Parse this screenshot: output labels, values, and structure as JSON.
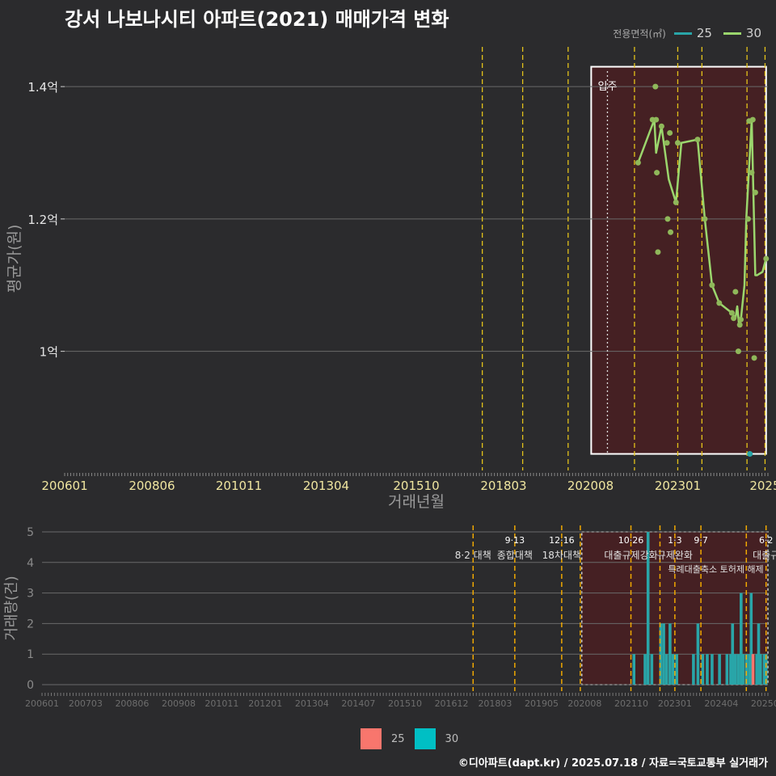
{
  "title": "강서 나보나시티 아파트(2021) 매매가격 변화",
  "footer": "©디아파트(dapt.kr) / 2025.07.18 / 자료=국토교통부 실거래가",
  "colors": {
    "background": "#2b2b2d",
    "line30": "#9bd66d",
    "point30": "#8fb85a",
    "bar30": "#29a5a8",
    "bar25": "#f8766d",
    "dashed": "#e3c21a",
    "shade": "#4a1f22",
    "grid": "#6a6a6a"
  },
  "legend_top": {
    "title": "전용면적(㎡)",
    "items": [
      "25",
      "30"
    ]
  },
  "legend_bottom": {
    "items": [
      "25",
      "30"
    ]
  },
  "chart_data": [
    {
      "type": "line",
      "title": "강서 나보나시티 아파트(2021) 매매가격 변화",
      "xlabel": "거래년월",
      "ylabel": "평균가(원)",
      "xlim": [
        2006.0,
        2025.5
      ],
      "ylim": [
        0.82,
        1.46
      ],
      "yticks": [
        {
          "v": 1.0,
          "label": "1억"
        },
        {
          "v": 1.2,
          "label": "1.2억"
        },
        {
          "v": 1.4,
          "label": "1.4억"
        }
      ],
      "xticks": [
        {
          "v": 2006.0,
          "label": "200601"
        },
        {
          "v": 2008.42,
          "label": "200806"
        },
        {
          "v": 2010.83,
          "label": "201011"
        },
        {
          "v": 2013.25,
          "label": "201304"
        },
        {
          "v": 2015.75,
          "label": "201510"
        },
        {
          "v": 2018.17,
          "label": "201803"
        },
        {
          "v": 2020.58,
          "label": "202008"
        },
        {
          "v": 2023.0,
          "label": "202301"
        },
        {
          "v": 2025.42,
          "label": "2025"
        }
      ],
      "vlines": [
        2017.58,
        2018.7,
        2019.96,
        2021.8,
        2023.0,
        2023.67,
        2024.92,
        2025.42
      ],
      "annotation": {
        "label": "입주",
        "x": 2021.05
      },
      "highlight": {
        "x0": 2020.6,
        "x1": 2025.45,
        "y0": 0.845,
        "y1": 1.43
      },
      "series": [
        {
          "name": "30",
          "x": [
            2021.9,
            2022.35,
            2022.4,
            2022.55,
            2022.75,
            2022.95,
            2023.1,
            2023.55,
            2023.75,
            2023.95,
            2024.15,
            2024.5,
            2024.6,
            2024.65,
            2024.7,
            2024.75,
            2024.85,
            2024.9,
            2024.95,
            2025.05,
            2025.15,
            2025.2,
            2025.35,
            2025.45
          ],
          "y": [
            1.285,
            1.35,
            1.3,
            1.34,
            1.26,
            1.225,
            1.315,
            1.32,
            1.2,
            1.1,
            1.073,
            1.058,
            1.05,
            1.068,
            1.04,
            1.048,
            1.1,
            1.2,
            1.25,
            1.35,
            1.115,
            1.115,
            1.12,
            1.14
          ]
        },
        {
          "name": "30-points",
          "x": [
            2021.9,
            2022.3,
            2022.38,
            2022.4,
            2022.42,
            2022.45,
            2022.55,
            2022.7,
            2022.72,
            2022.78,
            2022.8,
            2022.95,
            2023.0,
            2023.55,
            2023.75,
            2023.95,
            2024.15,
            2024.5,
            2024.55,
            2024.6,
            2024.68,
            2024.72,
            2024.75,
            2024.95,
            2024.98,
            2025.05,
            2025.08,
            2025.12,
            2025.15,
            2025.45
          ],
          "y": [
            1.285,
            1.35,
            1.4,
            1.35,
            1.27,
            1.15,
            1.34,
            1.315,
            1.2,
            1.33,
            1.18,
            1.225,
            1.315,
            1.32,
            1.2,
            1.1,
            1.073,
            1.058,
            1.05,
            1.09,
            1.0,
            1.04,
            1.048,
            1.2,
            1.348,
            1.27,
            1.35,
            0.99,
            1.24,
            1.14
          ]
        },
        {
          "name": "25",
          "x": [
            2025.0
          ],
          "y": [
            0.845
          ]
        }
      ]
    },
    {
      "type": "bar",
      "xlabel": "",
      "ylabel": "거래량(건)",
      "xlim": [
        2006.0,
        2025.5
      ],
      "ylim": [
        0,
        5
      ],
      "yticks": [
        0,
        1,
        2,
        3,
        4,
        5
      ],
      "xticks": [
        {
          "v": 2006.0,
          "label": "200601"
        },
        {
          "v": 2007.17,
          "label": "200703"
        },
        {
          "v": 2008.42,
          "label": "200806"
        },
        {
          "v": 2009.67,
          "label": "200908"
        },
        {
          "v": 2010.83,
          "label": "201011"
        },
        {
          "v": 2012.0,
          "label": "201201"
        },
        {
          "v": 2013.25,
          "label": "201304"
        },
        {
          "v": 2014.5,
          "label": "201407"
        },
        {
          "v": 2015.75,
          "label": "201510"
        },
        {
          "v": 2017.0,
          "label": "201612"
        },
        {
          "v": 2018.17,
          "label": "201803"
        },
        {
          "v": 2019.42,
          "label": "201905"
        },
        {
          "v": 2020.58,
          "label": "202008"
        },
        {
          "v": 2021.83,
          "label": "202110"
        },
        {
          "v": 2023.0,
          "label": "202301"
        },
        {
          "v": 2024.25,
          "label": "202404"
        },
        {
          "v": 2025.42,
          "label": "20250"
        }
      ],
      "vlines": [
        {
          "x": 2017.58,
          "line1": "",
          "line2": "8·2 대책"
        },
        {
          "x": 2018.7,
          "line1": "9·13",
          "line2": "종합대책"
        },
        {
          "x": 2019.96,
          "line1": "12·16",
          "line2": "18차대책"
        },
        {
          "x": 2020.46,
          "line1": "",
          "line2": ""
        },
        {
          "x": 2021.82,
          "line1": "10·26",
          "line2": "대출규제강화"
        },
        {
          "x": 2022.6,
          "line1": "",
          "line2": ""
        },
        {
          "x": 2023.0,
          "line1": "1·3",
          "line2": "규제완화"
        },
        {
          "x": 2023.7,
          "line1": "9·7",
          "line2": ""
        },
        {
          "x": 2024.92,
          "line1": "",
          "line2": ""
        },
        {
          "x": 2025.45,
          "line1": "6·2",
          "line2": "대출규"
        }
      ],
      "extra_labels": [
        {
          "x": 2024.1,
          "text": "특례대출축소 토허제 해제"
        }
      ],
      "highlight": {
        "x0": 2020.5,
        "x1": 2025.5,
        "y0": 0,
        "y1": 5
      },
      "series": [
        {
          "name": "30",
          "x": [
            2021.9,
            2022.2,
            2022.28,
            2022.38,
            2022.62,
            2022.7,
            2022.78,
            2022.87,
            2022.95,
            2023.05,
            2023.5,
            2023.62,
            2023.75,
            2023.87,
            2024.0,
            2024.2,
            2024.4,
            2024.5,
            2024.55,
            2024.62,
            2024.7,
            2024.78,
            2024.83,
            2024.92,
            2025.0,
            2025.05,
            2025.2,
            2025.25,
            2025.3,
            2025.4,
            2025.45
          ],
          "values": [
            1,
            1,
            5,
            1,
            2,
            2,
            1,
            2,
            1,
            1,
            1,
            2,
            1,
            1,
            1,
            1,
            1,
            1,
            2,
            1,
            1,
            3,
            1,
            1,
            1,
            3,
            1,
            2,
            1,
            1,
            1
          ]
        },
        {
          "name": "25",
          "x": [
            2025.1
          ],
          "values": [
            1
          ]
        }
      ]
    }
  ]
}
